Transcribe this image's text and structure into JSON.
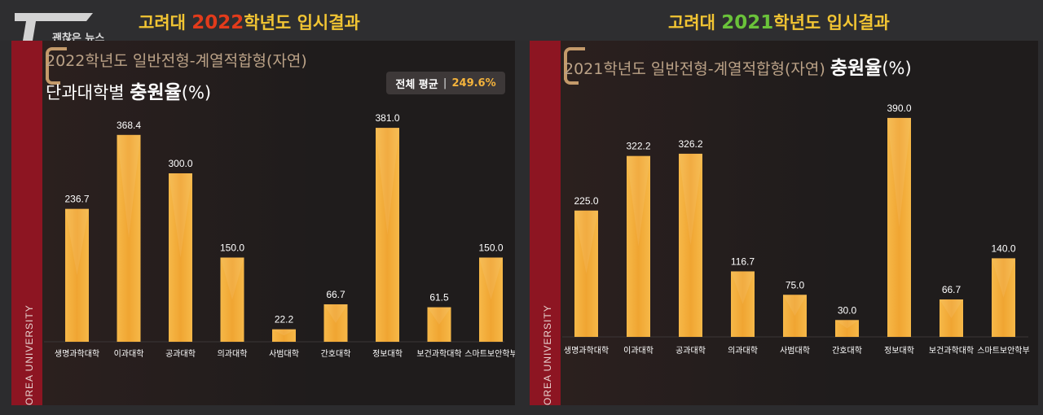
{
  "source_label": "괜찮은 뉴스",
  "left": {
    "top_title_pre": "고려대 ",
    "top_title_year": "2022",
    "top_title_post": "학년도 입시결과",
    "year_color": "#e23b1b",
    "subtitle_line1": "2022학년도 일반전형-계열적합형(자연)",
    "subtitle_line2_pre": "단과대학별 ",
    "subtitle_line2_bold": "충원율",
    "subtitle_line2_post": "(%)",
    "badge_label": "전체 평균",
    "badge_sep": "|",
    "badge_value": "249.6%",
    "side_label": "KOREA UNIVERSITY"
  },
  "right": {
    "top_title_pre": "고려대 ",
    "top_title_year": "2021",
    "top_title_post": "학년도 입시결과",
    "year_color": "#6ac23a",
    "subtitle_line1": "2021학년도 일반전형-계열적합형(자연) ",
    "subtitle_line2_bold": "충원율",
    "subtitle_line2_post": "(%)",
    "side_label": "KOREA UNIVERSITY"
  },
  "chart_data": [
    {
      "type": "bar",
      "categories": [
        "생명과학대학",
        "이과대학",
        "공과대학",
        "의과대학",
        "사범대학",
        "간호대학",
        "정보대학",
        "보건과학대학",
        "스마트보안학부"
      ],
      "values": [
        236.7,
        368.4,
        300.0,
        150.0,
        22.2,
        66.7,
        381.0,
        61.5,
        150.0
      ],
      "value_labels": [
        "236.7",
        "368.4",
        "300.0",
        "150.0",
        "22.2",
        "66.7",
        "381.0",
        "61.5",
        "150.0"
      ],
      "bar_color": "#f2a93b"
    },
    {
      "type": "bar",
      "categories": [
        "생명과학대학",
        "이과대학",
        "공과대학",
        "의과대학",
        "사범대학",
        "간호대학",
        "정보대학",
        "보건과학대학",
        "스마트보안학부"
      ],
      "values": [
        225.0,
        322.2,
        326.2,
        116.7,
        75.0,
        30.0,
        390.0,
        66.7,
        140.0
      ],
      "value_labels": [
        "225.0",
        "322.2",
        "326.2",
        "116.7",
        "75.0",
        "30.0",
        "390.0",
        "66.7",
        "140.0"
      ],
      "bar_color": "#f2a93b"
    }
  ]
}
